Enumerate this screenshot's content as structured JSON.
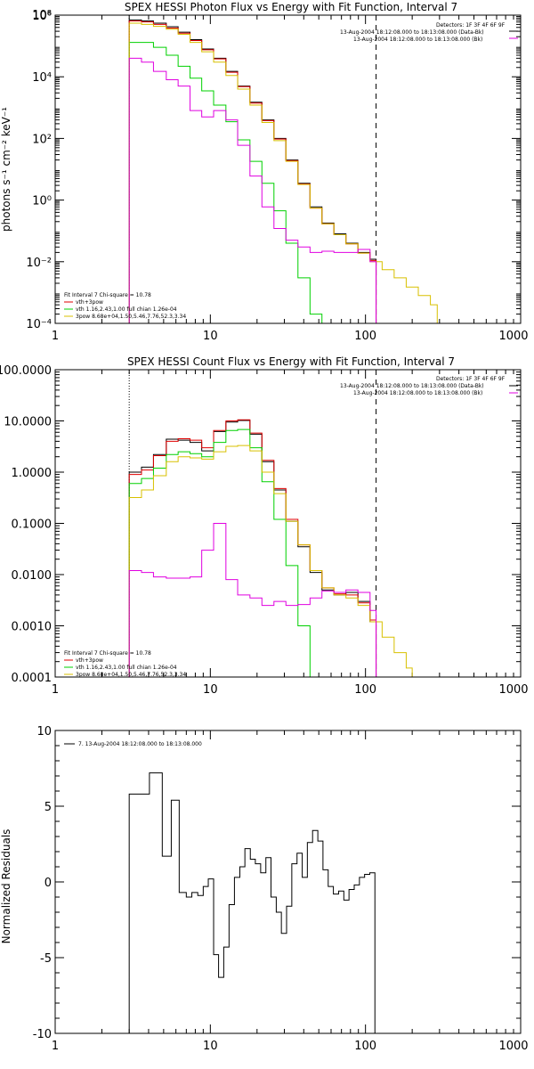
{
  "chart_data": [
    {
      "type": "line",
      "title": "SPEX HESSI Photon Flux vs Energy with Fit Function, Interval 7",
      "ylabel": "photons s⁻¹ cm⁻² keV⁻¹",
      "xlabel": "",
      "xscale": "log",
      "yscale": "log",
      "xlim": [
        1,
        1000
      ],
      "ylim": [
        0.0001,
        1000000
      ],
      "x_ticks": [
        "1",
        "10",
        "100",
        "1000"
      ],
      "y_ticks": [
        "10⁻⁴",
        "10⁻²",
        "10⁰",
        "10²",
        "10⁴",
        "10⁶",
        "10⁸"
      ],
      "y_tick_values": [
        0.0001,
        0.01,
        1,
        100,
        10000,
        1000000,
        100000000
      ],
      "vlines": [
        {
          "x": 3.0,
          "style": "dotted"
        },
        {
          "x": 117,
          "style": "dashed"
        }
      ],
      "info_box": [
        "Detectors: 1F 3F 4F 6F 9F",
        "13-Aug-2004 18:12:08.000 to 18:13:08.000 (Data-Bk)",
        "13-Aug-2004 18:12:08.000 to 18:13:08.000 (Bk)"
      ],
      "fit_text": [
        "Fit Interval  7   Chi-square = 10.78",
        "vth+3pow",
        "vth 1.16,2.43,1.00  full chian 1.26e-04",
        "3pow 8.68e+04,1.50,5.46,7.76,52.3,3.34"
      ],
      "series": [
        {
          "label": "Data-Bk",
          "color": "#000000",
          "edges": [
            3.0,
            3.6,
            4.3,
            5.2,
            6.2,
            7.4,
            8.8,
            10.5,
            12.6,
            15,
            18,
            21.5,
            25.7,
            30.7,
            36.7,
            43.9,
            52.4,
            62.6,
            74.8,
            89.4,
            107,
            117
          ],
          "y": [
            700000.0,
            650000.0,
            550000.0,
            420000.0,
            280000.0,
            160000.0,
            80000.0,
            40000.0,
            15000.0,
            5000.0,
            1500.0,
            400,
            100,
            20,
            3.5,
            0.6,
            0.18,
            0.08,
            0.04,
            0.02,
            0.012
          ]
        },
        {
          "label": "vth+3pow",
          "color": "#e00000",
          "edges": [
            3.0,
            3.6,
            4.3,
            5.2,
            6.2,
            7.4,
            8.8,
            10.5,
            12.6,
            15,
            18,
            21.5,
            25.7,
            30.7,
            36.7,
            43.9,
            52.4,
            62.6,
            74.8,
            89.4,
            107,
            117
          ],
          "y": [
            650000.0,
            600000.0,
            500000.0,
            380000.0,
            260000.0,
            150000.0,
            75000.0,
            38000.0,
            14000.0,
            4800.0,
            1400.0,
            380,
            95,
            19,
            3.3,
            0.55,
            0.17,
            0.075,
            0.038,
            0.019,
            0.011
          ]
        },
        {
          "label": "vth",
          "color": "#00d000",
          "edges": [
            3.0,
            3.6,
            4.3,
            5.2,
            6.2,
            7.4,
            8.8,
            10.5,
            12.6,
            15,
            18,
            21.5,
            25.7,
            30.7,
            36.7,
            43.9,
            52.4
          ],
          "y": [
            130000.0,
            130000.0,
            90000.0,
            50000.0,
            22000.0,
            9000.0,
            3500.0,
            1200.0,
            350,
            90,
            18,
            3.5,
            0.45,
            0.04,
            0.003,
            0.0002
          ]
        },
        {
          "label": "3pow",
          "color": "#d8c000",
          "edges": [
            3.0,
            3.6,
            4.3,
            5.2,
            6.2,
            7.4,
            8.8,
            10.5,
            12.6,
            15,
            18,
            21.5,
            25.7,
            30.7,
            36.7,
            43.9,
            52.4,
            62.6,
            74.8,
            89.4,
            107,
            128,
            153,
            183,
            219,
            262,
            290
          ],
          "y": [
            550000.0,
            500000.0,
            430000.0,
            350000.0,
            240000.0,
            130000.0,
            65000.0,
            30000.0,
            11000.0,
            4000.0,
            1200.0,
            330,
            85,
            18,
            3.2,
            0.55,
            0.17,
            0.075,
            0.038,
            0.019,
            0.01,
            0.0055,
            0.003,
            0.0015,
            0.0008,
            0.0004
          ]
        },
        {
          "label": "Bk",
          "color": "#e000e0",
          "edges": [
            3.0,
            3.6,
            4.3,
            5.2,
            6.2,
            7.4,
            8.8,
            10.5,
            12.6,
            15,
            18,
            21.5,
            25.7,
            30.7,
            36.7,
            43.9,
            52.4,
            62.6,
            74.8,
            89.4,
            107,
            117
          ],
          "y": [
            40000.0,
            30000.0,
            15000.0,
            8000.0,
            5000.0,
            800,
            500,
            800,
            400,
            60,
            6,
            0.6,
            0.12,
            0.05,
            0.03,
            0.02,
            0.022,
            0.02,
            0.02,
            0.025,
            0.01
          ]
        }
      ]
    },
    {
      "type": "line",
      "title": "SPEX HESSI Count Flux vs Energy with Fit Function, Interval 7",
      "xlabel": "",
      "ylabel": "",
      "xscale": "log",
      "yscale": "log",
      "xlim": [
        1,
        1000
      ],
      "ylim": [
        0.0001,
        100
      ],
      "x_ticks": [
        "1",
        "10",
        "100",
        "1000"
      ],
      "y_ticks": [
        "0.0001",
        "0.0010",
        "0.0100",
        "0.1000",
        "1.0000",
        "10.0000",
        "100.0000"
      ],
      "y_tick_values": [
        0.0001,
        0.001,
        0.01,
        0.1,
        1,
        10,
        100
      ],
      "vlines": [
        {
          "x": 3.0,
          "style": "dotted"
        },
        {
          "x": 117,
          "style": "dashed"
        }
      ],
      "info_box": [
        "Detectors: 1F 3F 4F 6F 9F",
        "13-Aug-2004 18:12:08.000 to 18:13:08.000 (Data-Bk)",
        "13-Aug-2004 18:12:08.000 to 18:13:08.000 (Bk)"
      ],
      "fit_text": [
        "Fit Interval  7   Chi-square = 10.78",
        "vth+3pow",
        "vth 1.16,2.43,1.00  full chian 1.26e-04",
        "3pow 8.68e+04,1.50,5.46,7.76,52.3,3.34"
      ],
      "series": [
        {
          "label": "Data-Bk",
          "color": "#000000",
          "edges": [
            3.0,
            3.6,
            4.3,
            5.2,
            6.2,
            7.4,
            8.8,
            10.5,
            12.6,
            15,
            18,
            21.5,
            25.7,
            30.7,
            36.7,
            43.9,
            52.4,
            62.6,
            74.8,
            89.4,
            107,
            117
          ],
          "y": [
            1.0,
            1.25,
            2.2,
            4.4,
            4.2,
            3.8,
            2.6,
            6.2,
            9.5,
            10.2,
            5.5,
            1.6,
            0.45,
            0.11,
            0.035,
            0.011,
            0.005,
            0.004,
            0.0045,
            0.003,
            0.0012
          ]
        },
        {
          "label": "vth+3pow",
          "color": "#e00000",
          "edges": [
            3.0,
            3.6,
            4.3,
            5.2,
            6.2,
            7.4,
            8.8,
            10.5,
            12.6,
            15,
            18,
            21.5,
            25.7,
            30.7,
            36.7,
            43.9,
            52.4,
            62.6,
            74.8,
            89.4,
            107,
            117
          ],
          "y": [
            0.9,
            1.1,
            2.1,
            4.0,
            4.5,
            4.2,
            3.0,
            6.5,
            10.0,
            10.5,
            5.8,
            1.7,
            0.48,
            0.12,
            0.038,
            0.012,
            0.0055,
            0.0042,
            0.004,
            0.0028,
            0.0013
          ]
        },
        {
          "label": "vth",
          "color": "#00d000",
          "edges": [
            3.0,
            3.6,
            4.3,
            5.2,
            6.2,
            7.4,
            8.8,
            10.5,
            12.6,
            15,
            18,
            21.5,
            25.7,
            30.7,
            36.7,
            43.9
          ],
          "y": [
            0.6,
            0.75,
            1.2,
            2.2,
            2.5,
            2.3,
            2.0,
            3.8,
            6.5,
            6.8,
            3.0,
            0.65,
            0.12,
            0.015,
            0.001
          ]
        },
        {
          "label": "3pow",
          "color": "#d8c000",
          "edges": [
            3.0,
            3.6,
            4.3,
            5.2,
            6.2,
            7.4,
            8.8,
            10.5,
            12.6,
            15,
            18,
            21.5,
            25.7,
            30.7,
            36.7,
            43.9,
            52.4,
            62.6,
            74.8,
            89.4,
            107,
            128,
            153,
            183,
            200
          ],
          "y": [
            0.32,
            0.45,
            0.85,
            1.6,
            2.0,
            1.9,
            1.8,
            2.5,
            3.2,
            3.3,
            2.6,
            1.0,
            0.38,
            0.11,
            0.038,
            0.012,
            0.0055,
            0.004,
            0.0035,
            0.0025,
            0.0012,
            0.0006,
            0.0003,
            0.00015
          ]
        },
        {
          "label": "Bk",
          "color": "#e000e0",
          "edges": [
            3.0,
            3.6,
            4.3,
            5.2,
            6.2,
            7.4,
            8.8,
            10.5,
            12.6,
            15,
            18,
            21.5,
            25.7,
            30.7,
            36.7,
            43.9,
            52.4,
            62.6,
            74.8,
            89.4,
            107,
            117
          ],
          "y": [
            0.012,
            0.011,
            0.009,
            0.0085,
            0.0085,
            0.009,
            0.03,
            0.1,
            0.008,
            0.004,
            0.0035,
            0.0025,
            0.003,
            0.0025,
            0.0026,
            0.0035,
            0.0048,
            0.0045,
            0.005,
            0.0045,
            0.002
          ]
        }
      ]
    },
    {
      "type": "line",
      "title": "",
      "xlabel": "",
      "ylabel": "Normalized  Residuals",
      "xscale": "log",
      "yscale": "linear",
      "xlim": [
        1,
        1000
      ],
      "ylim": [
        -10,
        10
      ],
      "x_ticks": [
        "1",
        "10",
        "100",
        "1000"
      ],
      "y_ticks": [
        "-10",
        "-5",
        "0",
        "5",
        "10"
      ],
      "y_tick_values": [
        -10,
        -5,
        0,
        5,
        10
      ],
      "legend": "7. 13-Aug-2004 18:12:08.000 to 18:13:08.000",
      "series": [
        {
          "label": "residuals",
          "color": "#000000",
          "edges": [
            3.0,
            4.05,
            4.9,
            5.6,
            6.3,
            7.0,
            7.6,
            8.3,
            9.0,
            9.7,
            10.5,
            11.3,
            12.2,
            13.2,
            14.3,
            15.5,
            16.7,
            18.1,
            19.5,
            21.1,
            22.8,
            24.6,
            26.6,
            28.7,
            31.0,
            33.5,
            36.2,
            39.1,
            42.2,
            45.6,
            49.3,
            53.2,
            57.5,
            62.1,
            67.1,
            72.5,
            78.3,
            84.6,
            91.4,
            98.7,
            106.6,
            115
          ],
          "y": [
            5.8,
            7.2,
            1.7,
            5.4,
            -0.7,
            -1.0,
            -0.7,
            -0.9,
            -0.3,
            0.2,
            -4.8,
            -6.3,
            -4.3,
            -1.5,
            0.3,
            1.0,
            2.2,
            1.5,
            1.2,
            0.6,
            1.6,
            -1.0,
            -2.0,
            -3.4,
            -1.6,
            1.2,
            1.9,
            0.3,
            2.6,
            3.4,
            2.7,
            0.8,
            -0.3,
            -0.8,
            -0.6,
            -1.2,
            -0.5,
            -0.2,
            0.3,
            0.5,
            0.6
          ]
        }
      ]
    }
  ]
}
